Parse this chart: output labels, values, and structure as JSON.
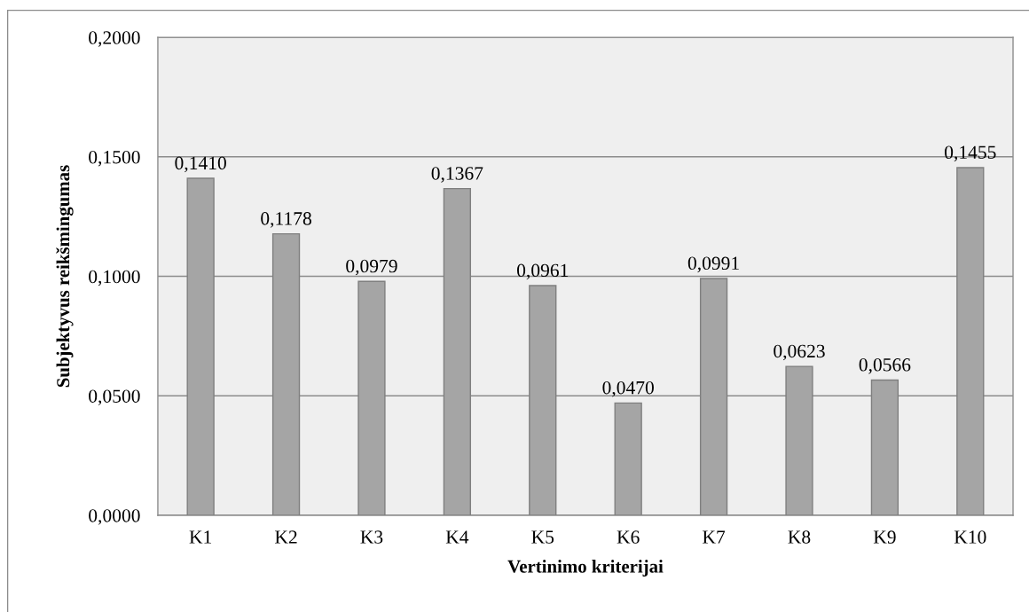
{
  "chart_data": {
    "type": "bar",
    "xlabel": "Vertinimo kriterijai",
    "ylabel": "Subjektyvus reikšmingumas",
    "categories": [
      "K1",
      "K2",
      "K3",
      "K4",
      "K5",
      "K6",
      "K7",
      "K8",
      "K9",
      "K10"
    ],
    "values": [
      0.141,
      0.1178,
      0.0979,
      0.1367,
      0.0961,
      0.047,
      0.0991,
      0.0623,
      0.0566,
      0.1455
    ],
    "value_labels": [
      "0,1410",
      "0,1178",
      "0,0979",
      "0,1367",
      "0,0961",
      "0,0470",
      "0,0991",
      "0,0623",
      "0,0566",
      "0,1455"
    ],
    "color": "#a5a5a5",
    "ylim": [
      0,
      0.2
    ],
    "yticks": [
      {
        "value": 0,
        "label": "0,0000"
      },
      {
        "value": 0.05,
        "label": "0,0500"
      },
      {
        "value": 0.1,
        "label": "0,1000"
      },
      {
        "value": 0.15,
        "label": "0,1500"
      },
      {
        "value": 0.2,
        "label": "0,2000"
      }
    ],
    "grid": "y",
    "legend": false
  }
}
